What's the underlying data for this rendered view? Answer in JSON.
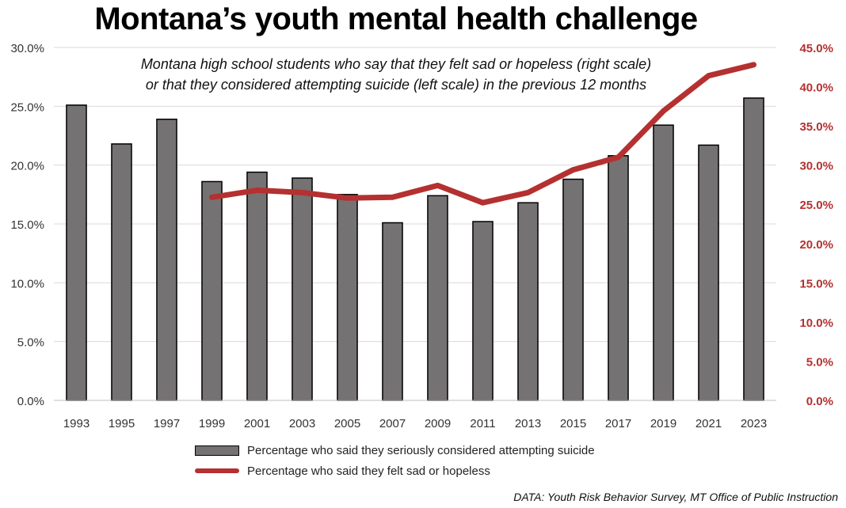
{
  "chart_data": {
    "type": "bar+line",
    "title": "Montana’s youth mental health challenge",
    "subtitle_lines": [
      "Montana high school students who say that they felt sad or hopeless (right scale)",
      "or that they considered attempting suicide (left scale) in the previous 12 months"
    ],
    "categories": [
      "1993",
      "1995",
      "1997",
      "1999",
      "2001",
      "2003",
      "2005",
      "2007",
      "2009",
      "2011",
      "2013",
      "2015",
      "2017",
      "2019",
      "2021",
      "2023"
    ],
    "left_axis": {
      "ylim": [
        0,
        30
      ],
      "ticks": [
        0,
        5,
        10,
        15,
        20,
        25,
        30
      ],
      "tick_labels": [
        "0.0%",
        "5.0%",
        "10.0%",
        "15.0%",
        "20.0%",
        "25.0%",
        "30.0%"
      ]
    },
    "right_axis": {
      "ylim": [
        0,
        45
      ],
      "ticks": [
        0,
        5,
        10,
        15,
        20,
        25,
        30,
        35,
        40,
        45
      ],
      "tick_labels": [
        "0.0%",
        "5.0%",
        "10.0%",
        "15.0%",
        "20.0%",
        "25.0%",
        "30.0%",
        "35.0%",
        "40.0%",
        "45.0%"
      ],
      "color": "#b53030"
    },
    "series": [
      {
        "name": "Percentage who said they seriously considered attempting suicide",
        "type": "bar",
        "axis": "left",
        "color": "#757273",
        "values": [
          25.1,
          21.8,
          23.9,
          18.6,
          19.4,
          18.9,
          17.5,
          15.1,
          17.4,
          15.2,
          16.8,
          18.8,
          20.8,
          23.4,
          21.7,
          25.7
        ]
      },
      {
        "name": "Percentage who said they felt sad or hopeless",
        "type": "line",
        "axis": "right",
        "color": "#b53030",
        "values": [
          null,
          null,
          null,
          25.9,
          26.8,
          26.5,
          25.8,
          25.9,
          27.4,
          25.2,
          26.5,
          29.4,
          31.0,
          36.9,
          41.4,
          42.8
        ]
      }
    ],
    "grid": true,
    "legend_position": "bottom"
  },
  "source": "DATA: Youth Risk Behavior Survey, MT Office of Public Instruction"
}
